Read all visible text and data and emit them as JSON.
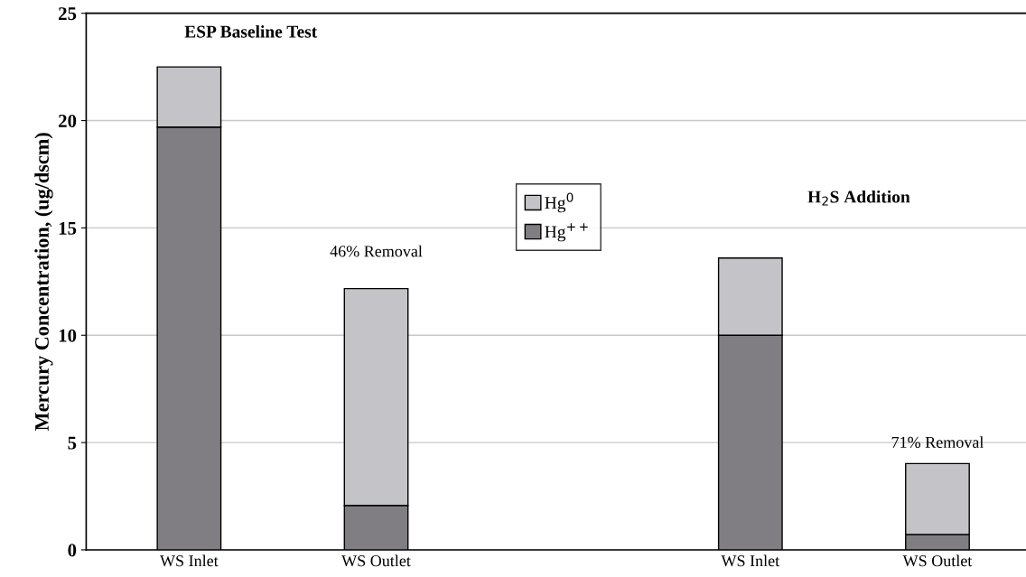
{
  "chart_data": {
    "type": "bar",
    "stacked": true,
    "ylabel": "Mercury Concentration, (ug/dscm)",
    "categories": [
      "WS Inlet",
      "WS Outlet",
      null,
      "WS Inlet",
      "WS Outlet"
    ],
    "series": [
      {
        "name": "Hg$^{++}$",
        "color": "#807e83",
        "values": [
          19.7,
          2.07,
          null,
          10.0,
          0.72
        ]
      },
      {
        "name": "Hg$^{0}$",
        "color": "#c4c3c7",
        "values": [
          2.8,
          10.1,
          null,
          3.6,
          3.3
        ]
      }
    ],
    "ylim": [
      0,
      25
    ],
    "yticks": [
      0,
      5,
      10,
      15,
      20,
      25
    ],
    "grid": "y",
    "legend": "center",
    "annotations": [
      "ESP Baseline Test",
      "H$_{2}$S Addition",
      "46% Removal",
      "71% Removal"
    ]
  }
}
